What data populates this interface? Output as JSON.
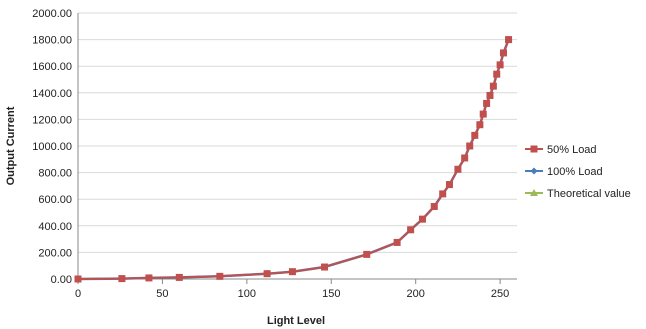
{
  "chart_data": {
    "type": "line",
    "xlabel": "Light Level",
    "ylabel": "Output Current",
    "xlim": [
      0,
      260
    ],
    "ylim": [
      0,
      2000
    ],
    "x_ticks": [
      0,
      50,
      100,
      150,
      200,
      250
    ],
    "x_tick_labels": [
      "0",
      "50",
      "100",
      "150",
      "200",
      "250"
    ],
    "y_ticks": [
      0,
      200,
      400,
      600,
      800,
      1000,
      1200,
      1400,
      1600,
      1800,
      2000
    ],
    "y_tick_labels": [
      "0.00",
      "200.00",
      "400.00",
      "600.00",
      "800.00",
      "1000.00",
      "1200.00",
      "1400.00",
      "1600.00",
      "1800.00",
      "2000.00"
    ],
    "grid": "horizontal",
    "legend_position": "right",
    "x": [
      0,
      26,
      42,
      60,
      84,
      112,
      127,
      146,
      171,
      189,
      197,
      204,
      211,
      216,
      220,
      225,
      229,
      232,
      235,
      238,
      240,
      242,
      244,
      246,
      248,
      250,
      252,
      255
    ],
    "series": [
      {
        "name": "50% Load",
        "color": "#c0504d",
        "marker": "square",
        "values": [
          0,
          3,
          8,
          12,
          20,
          40,
          55,
          90,
          185,
          275,
          370,
          450,
          545,
          640,
          710,
          825,
          910,
          1000,
          1080,
          1160,
          1240,
          1320,
          1380,
          1450,
          1540,
          1610,
          1700,
          1800
        ]
      },
      {
        "name": "100% Load",
        "color": "#4a7ebb",
        "marker": "diamond",
        "values": [
          0,
          3,
          8,
          12,
          20,
          40,
          55,
          90,
          185,
          275,
          370,
          450,
          545,
          640,
          710,
          825,
          910,
          1000,
          1080,
          1160,
          1240,
          1320,
          1380,
          1450,
          1540,
          1610,
          1700,
          1800
        ]
      },
      {
        "name": "Theoretical value",
        "color": "#9bbb59",
        "marker": "triangle",
        "values": [
          0,
          3,
          8,
          12,
          20,
          40,
          55,
          90,
          185,
          275,
          370,
          450,
          545,
          640,
          710,
          825,
          910,
          1000,
          1080,
          1160,
          1240,
          1320,
          1380,
          1450,
          1540,
          1610,
          1700,
          1800
        ]
      }
    ]
  }
}
